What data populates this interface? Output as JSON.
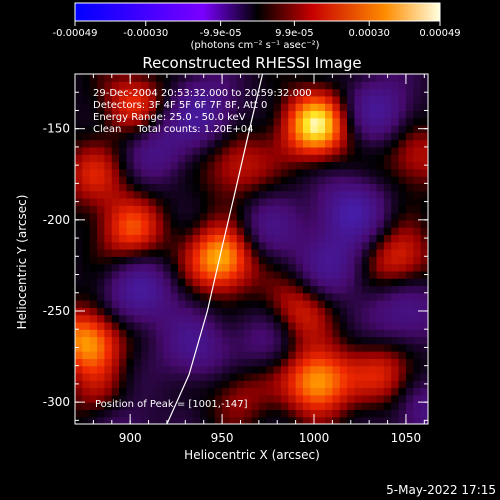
{
  "colorbar": {
    "tick_labels": [
      "-0.00049",
      "-0.00030",
      "-9.9e-05",
      "9.9e-05",
      "0.00030",
      "0.00049"
    ],
    "tick_values": [
      -0.00049,
      -0.0003,
      -9.9e-05,
      9.9e-05,
      0.0003,
      0.00049
    ],
    "range": [
      -0.00049,
      0.00049
    ],
    "unit_text": "(photons cm⁻² s⁻¹ asec⁻²)"
  },
  "chart_data": {
    "type": "heatmap",
    "title": "Reconstructed RHESSI Image",
    "xlabel": "Heliocentric X (arcsec)",
    "ylabel": "Heliocentric Y (arcsec)",
    "xlim": [
      870,
      1062
    ],
    "ylim": [
      -312,
      -120
    ],
    "x_ticks": [
      900,
      950,
      1000,
      1050
    ],
    "y_ticks": [
      -300,
      -250,
      -200,
      -150
    ],
    "x_tick_labels": [
      "900",
      "950",
      "1000",
      "1050"
    ],
    "y_tick_labels": [
      "-300",
      "-250",
      "-200",
      "-150"
    ],
    "annotations": [
      "29-Dec-2004 20:53:32.000 to 20:59:32.000",
      "Detectors: 3F 4F 5F 6F 7F 8F, Att 0",
      "Energy Range: 25.0 - 50.0 keV",
      "Clean     Total counts: 1.20E+04"
    ],
    "peak_label": "Position of Peak = [1001,-147]",
    "peak_position": [
      1001,
      -147
    ],
    "limb_points": [
      [
        920,
        -312
      ],
      [
        932,
        -285
      ],
      [
        942,
        -250
      ],
      [
        950,
        -215
      ],
      [
        957,
        -185
      ],
      [
        965,
        -150
      ],
      [
        972,
        -120
      ]
    ],
    "sources": [
      {
        "x": 1001,
        "y": -148,
        "value": 0.00049
      },
      {
        "x": 950,
        "y": -221,
        "value": 0.00044
      },
      {
        "x": 1002,
        "y": -288,
        "value": 0.00042
      },
      {
        "x": 877,
        "y": -266,
        "value": 0.0004
      },
      {
        "x": 900,
        "y": -205,
        "value": 0.00028
      },
      {
        "x": 902,
        "y": -136,
        "value": 0.00025
      },
      {
        "x": 990,
        "y": -250,
        "value": 0.00024
      },
      {
        "x": 1046,
        "y": -222,
        "value": 0.00026
      },
      {
        "x": 958,
        "y": -170,
        "value": 0.00022
      },
      {
        "x": 1040,
        "y": -285,
        "value": 0.00023
      },
      {
        "x": 1055,
        "y": -165,
        "value": 0.0002
      },
      {
        "x": 880,
        "y": -175,
        "value": 0.0002
      },
      {
        "x": 885,
        "y": -300,
        "value": 0.00018
      },
      {
        "x": 960,
        "y": -295,
        "value": 0.00015
      },
      {
        "x": 905,
        "y": -240,
        "value": -0.00028
      },
      {
        "x": 1020,
        "y": -195,
        "value": -0.0003
      },
      {
        "x": 940,
        "y": -140,
        "value": -0.00026
      },
      {
        "x": 1050,
        "y": -250,
        "value": -0.00024
      },
      {
        "x": 935,
        "y": -270,
        "value": -0.00022
      },
      {
        "x": 1010,
        "y": -225,
        "value": -0.00022
      },
      {
        "x": 1035,
        "y": -140,
        "value": -0.00026
      },
      {
        "x": 915,
        "y": -160,
        "value": -0.0002
      },
      {
        "x": 975,
        "y": -205,
        "value": -0.00018
      },
      {
        "x": 1060,
        "y": -305,
        "value": -0.0002
      },
      {
        "x": 895,
        "y": -310,
        "value": -0.00018
      },
      {
        "x": 975,
        "y": -265,
        "value": -0.00016
      }
    ]
  },
  "footer": {
    "timestamp": "5-May-2022 17:15"
  }
}
